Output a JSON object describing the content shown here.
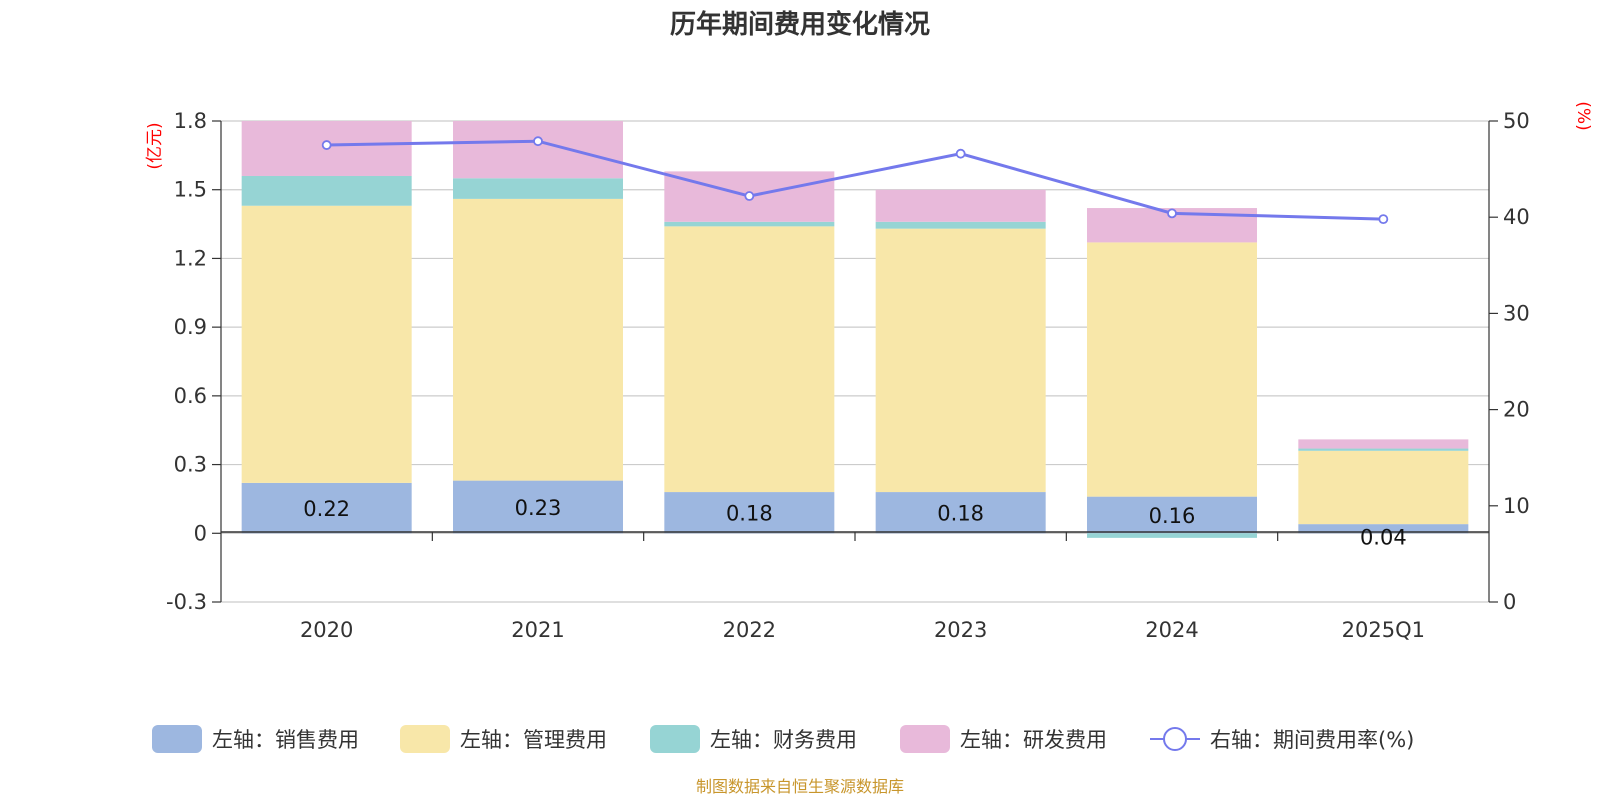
{
  "chart_data": {
    "type": "bar",
    "title": "历年期间费用变化情况",
    "left_unit": "(亿元)",
    "right_unit": "(%)",
    "categories": [
      "2020",
      "2021",
      "2022",
      "2023",
      "2024",
      "2025Q1"
    ],
    "left_axis": {
      "ylim": [
        -0.3,
        1.8
      ],
      "ticks": [
        "1.8",
        "1.5",
        "1.2",
        "0.9",
        "0.6",
        "0.3",
        "0",
        "-0.3"
      ]
    },
    "right_axis": {
      "ylim": [
        0,
        50
      ],
      "ticks": [
        "50",
        "40",
        "30",
        "20",
        "10",
        "0"
      ]
    },
    "series": [
      {
        "name": "左轴：销售费用",
        "type": "bar",
        "color": "#9db7e0",
        "values": [
          0.22,
          0.23,
          0.18,
          0.18,
          0.16,
          0.04
        ],
        "labels": [
          "0.22",
          "0.23",
          "0.18",
          "0.18",
          "0.16",
          "0.04"
        ]
      },
      {
        "name": "左轴：管理费用",
        "type": "bar",
        "color": "#f8e7a9",
        "values": [
          1.21,
          1.23,
          1.16,
          1.15,
          1.11,
          0.32
        ]
      },
      {
        "name": "左轴：财务费用",
        "type": "bar",
        "color": "#96d4d4",
        "values": [
          0.13,
          0.09,
          0.02,
          0.03,
          -0.02,
          0.01
        ]
      },
      {
        "name": "左轴：研发费用",
        "type": "bar",
        "color": "#e8b9da",
        "values": [
          0.24,
          0.25,
          0.22,
          0.14,
          0.15,
          0.04
        ]
      },
      {
        "name": "右轴：期间费用率(%)",
        "type": "line",
        "color": "#7479ec",
        "values": [
          47.5,
          47.9,
          42.2,
          46.6,
          40.4,
          39.8
        ]
      }
    ],
    "grid": true,
    "legend_position": "bottom"
  },
  "source": "制图数据来自恒生聚源数据库"
}
